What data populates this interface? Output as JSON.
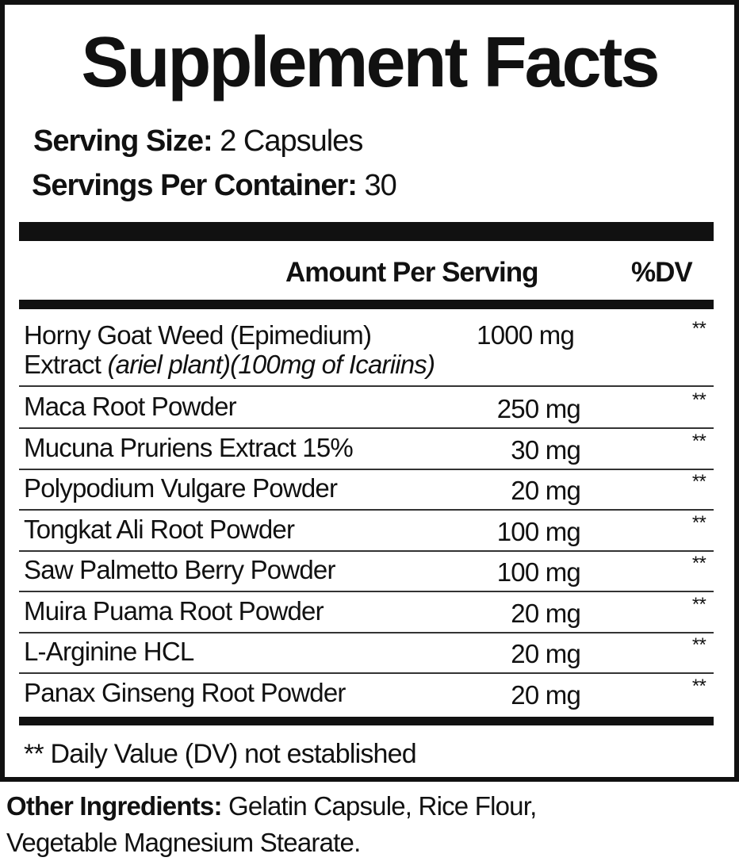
{
  "title": "Supplement Facts",
  "serving_size": {
    "label": "Serving Size:",
    "value": "2 Capsules"
  },
  "servings_per_container": {
    "label": "Servings Per Container:",
    "value": "30"
  },
  "header": {
    "amount": "Amount Per Serving",
    "dv": "%DV"
  },
  "first_item": {
    "name": "Horny Goat Weed (Epimedium)",
    "line2_plain": "Extract ",
    "line2_italic": "(ariel plant)(100mg of Icariins)",
    "amount": "1000 mg",
    "dv": "**"
  },
  "items": [
    {
      "name": "Maca Root Powder",
      "amount": "250 mg",
      "dv": "**"
    },
    {
      "name": "Mucuna Pruriens Extract 15%",
      "amount": "30 mg",
      "dv": "**"
    },
    {
      "name": "Polypodium Vulgare Powder",
      "amount": "20 mg",
      "dv": "**"
    },
    {
      "name": "Tongkat Ali Root Powder",
      "amount": "100 mg",
      "dv": "**"
    },
    {
      "name": "Saw Palmetto Berry Powder",
      "amount": "100 mg",
      "dv": "**"
    },
    {
      "name": "Muira Puama Root Powder",
      "amount": "20 mg",
      "dv": "**"
    },
    {
      "name": "L-Arginine HCL",
      "amount": "20 mg",
      "dv": "**"
    },
    {
      "name": "Panax Ginseng Root Powder",
      "amount": "20 mg",
      "dv": "**"
    }
  ],
  "footnote": "** Daily Value (DV) not established",
  "other_ingredients": {
    "label": "Other Ingredients:",
    "line1": " Gelatin Capsule, Rice Flour,",
    "line2": "Vegetable Magnesium Stearate."
  }
}
